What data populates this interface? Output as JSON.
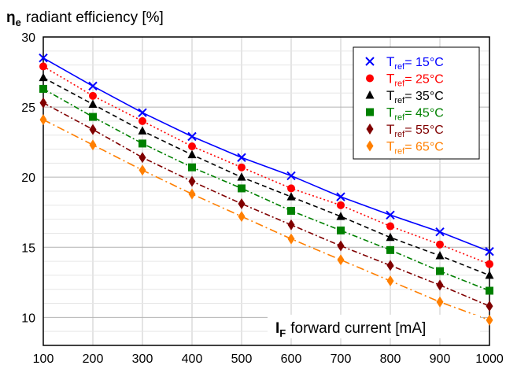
{
  "chart_data": {
    "type": "line",
    "y_axis": {
      "symbol": "η",
      "subscript": "e",
      "label": "radiant efficiency [%]"
    },
    "x_axis": {
      "symbol": "I",
      "subscript": "F",
      "label": "forward current [mA]"
    },
    "xlim": [
      100,
      1000
    ],
    "ylim": [
      8,
      30
    ],
    "x_ticks": [
      100,
      200,
      300,
      400,
      500,
      600,
      700,
      800,
      900,
      1000
    ],
    "y_ticks": [
      10,
      15,
      20,
      25,
      30
    ],
    "grid": true,
    "legend_position": "top-right",
    "x": [
      100,
      200,
      300,
      400,
      500,
      600,
      700,
      800,
      900,
      1000
    ],
    "series": [
      {
        "name_prefix": "T",
        "name_sub": "ref",
        "name_suffix": "= 15°C",
        "color": "#0000ff",
        "marker": "x",
        "line": "solid",
        "values": [
          28.5,
          26.5,
          24.6,
          22.9,
          21.4,
          20.1,
          18.6,
          17.3,
          16.1,
          14.7
        ]
      },
      {
        "name_prefix": "T",
        "name_sub": "ref",
        "name_suffix": "= 25°C",
        "color": "#ff0000",
        "marker": "circle",
        "line": "dotted",
        "values": [
          27.9,
          25.8,
          24.0,
          22.2,
          20.7,
          19.2,
          18.0,
          16.5,
          15.2,
          13.8
        ]
      },
      {
        "name_prefix": "T",
        "name_sub": "ref",
        "name_suffix": "= 35°C",
        "color": "#000000",
        "marker": "triangle",
        "line": "dashed",
        "values": [
          27.1,
          25.2,
          23.3,
          21.6,
          20.0,
          18.6,
          17.2,
          15.7,
          14.4,
          13.0
        ]
      },
      {
        "name_prefix": "T",
        "name_sub": "ref",
        "name_suffix": "= 45°C",
        "color": "#008000",
        "marker": "square",
        "line": "dashdot",
        "values": [
          26.3,
          24.3,
          22.4,
          20.7,
          19.2,
          17.6,
          16.2,
          14.8,
          13.3,
          11.9
        ]
      },
      {
        "name_prefix": "T",
        "name_sub": "ref",
        "name_suffix": "= 55°C",
        "color": "#800000",
        "marker": "diamond",
        "line": "dashdot",
        "values": [
          25.3,
          23.4,
          21.4,
          19.7,
          18.1,
          16.6,
          15.1,
          13.7,
          12.3,
          10.8
        ]
      },
      {
        "name_prefix": "T",
        "name_sub": "ref",
        "name_suffix": "= 65°C",
        "color": "#ff7f00",
        "marker": "diamond",
        "line": "dashdotlong",
        "values": [
          24.1,
          22.3,
          20.5,
          18.8,
          17.2,
          15.6,
          14.1,
          12.6,
          11.1,
          9.8
        ]
      }
    ]
  }
}
